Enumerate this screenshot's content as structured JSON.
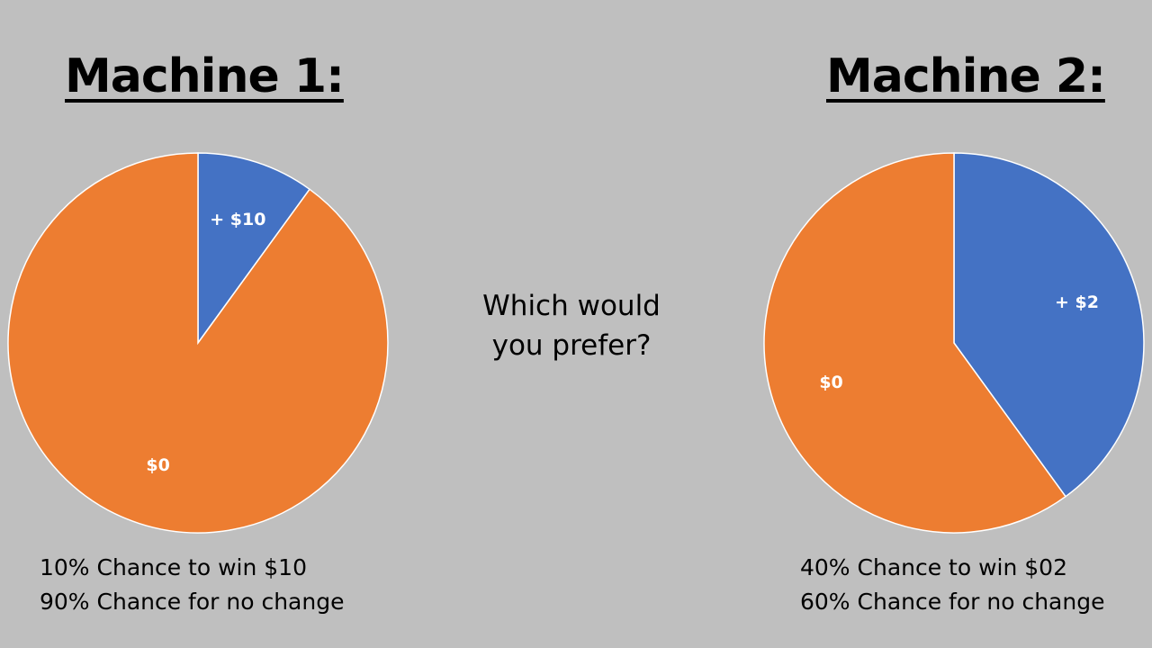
{
  "question": {
    "line1": "Which would",
    "line2": "you prefer?"
  },
  "colors": {
    "background": "#bfbfbf",
    "win": "#4472c4",
    "no_change": "#ed7d31"
  },
  "chart_data": [
    {
      "type": "pie",
      "title": "Machine 1:",
      "categories": [
        "+ $10",
        "$0"
      ],
      "values": [
        10,
        90
      ],
      "colors": [
        "#4472c4",
        "#ed7d31"
      ],
      "caption": [
        "10% Chance to win $10",
        "90% Chance for no change"
      ]
    },
    {
      "type": "pie",
      "title": "Machine 2:",
      "categories": [
        "+ $2",
        "$0"
      ],
      "values": [
        40,
        60
      ],
      "colors": [
        "#4472c4",
        "#ed7d31"
      ],
      "caption": [
        "40% Chance to win $02",
        "60% Chance for no change"
      ]
    }
  ]
}
